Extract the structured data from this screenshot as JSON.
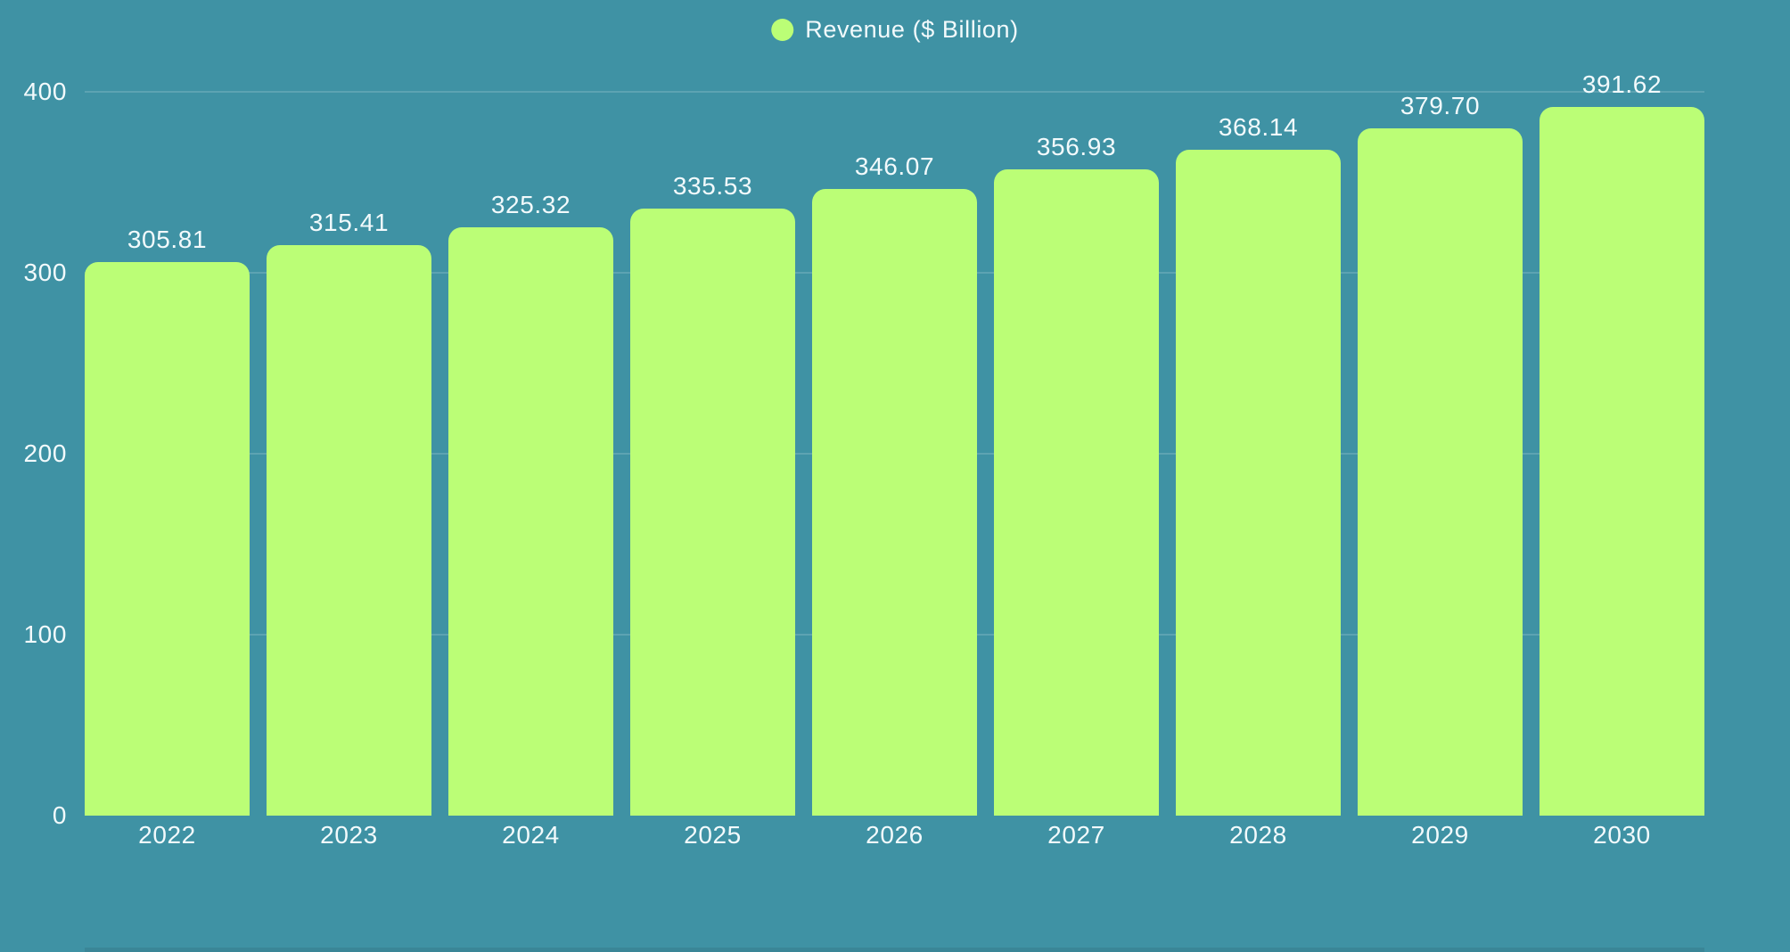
{
  "chart_data": {
    "type": "bar",
    "title": "",
    "xlabel": "",
    "ylabel": "",
    "legend": {
      "label": "Revenue ($ Billion)",
      "position": "top-center"
    },
    "categories": [
      "2022",
      "2023",
      "2024",
      "2025",
      "2026",
      "2027",
      "2028",
      "2029",
      "2030"
    ],
    "series": [
      {
        "name": "Revenue ($ Billion)",
        "values": [
          305.81,
          315.41,
          325.32,
          335.53,
          346.07,
          356.93,
          368.14,
          379.7,
          391.62
        ],
        "value_labels": [
          "305.81",
          "315.41",
          "325.32",
          "335.53",
          "346.07",
          "356.93",
          "368.14",
          "379.70",
          "391.62"
        ]
      }
    ],
    "ylim": [
      0,
      400
    ],
    "yticks": [
      0,
      100,
      200,
      300,
      400
    ],
    "grid": true
  },
  "colors": {
    "background": "#3F92A4",
    "bar": "#BBFE76",
    "text": "#F2FAFC",
    "gridline": "rgba(255,255,255,0.16)"
  }
}
